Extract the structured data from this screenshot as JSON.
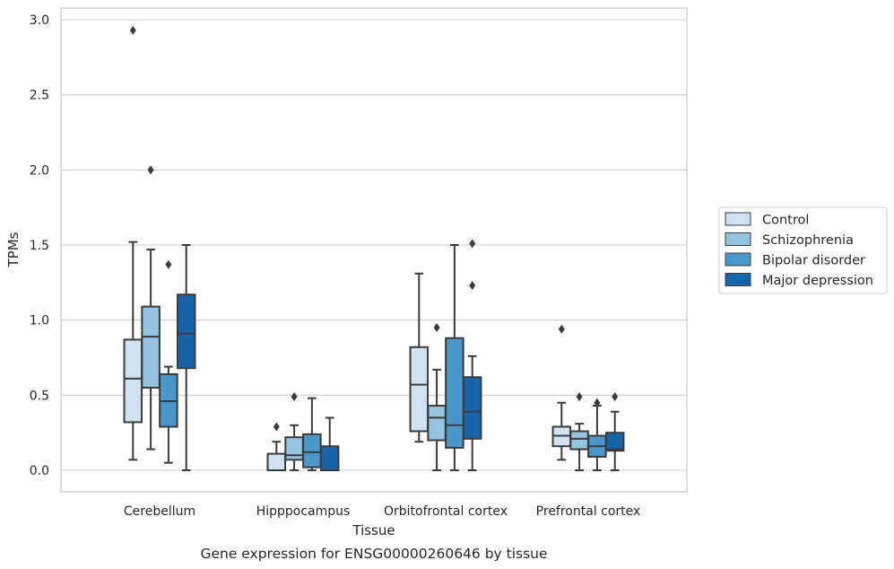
{
  "caption": "Gene expression for ENSG00000260646 by tissue",
  "chart_data": {
    "type": "boxplot",
    "xlabel": "Tissue",
    "ylabel": "TPMs",
    "ylim": [
      -0.14,
      3.07
    ],
    "yticks": [
      0.0,
      0.5,
      1.0,
      1.5,
      2.0,
      2.5,
      3.0
    ],
    "ytick_labels": [
      "0.0",
      "0.5",
      "1.0",
      "1.5",
      "2.0",
      "2.5",
      "3.0"
    ],
    "grid": "horizontal",
    "legend_position": "right",
    "categories": [
      "Cerebellum",
      "Hipppocampus",
      "Orbitofrontal cortex",
      "Prefrontal cortex"
    ],
    "series": [
      {
        "name": "Control",
        "color": "#d0e1f2",
        "boxes": [
          {
            "whislo": 0.07,
            "q1": 0.32,
            "med": 0.61,
            "q3": 0.87,
            "whishi": 1.52,
            "fliers": [
              2.93
            ]
          },
          {
            "whislo": 0.0,
            "q1": 0.0,
            "med": 0.0,
            "q3": 0.11,
            "whishi": 0.19,
            "fliers": [
              0.29
            ]
          },
          {
            "whislo": 0.19,
            "q1": 0.26,
            "med": 0.57,
            "q3": 0.82,
            "whishi": 1.31,
            "fliers": []
          },
          {
            "whislo": 0.07,
            "q1": 0.16,
            "med": 0.23,
            "q3": 0.29,
            "whishi": 0.45,
            "fliers": [
              0.94
            ]
          }
        ]
      },
      {
        "name": "Schizophrenia",
        "color": "#94c4df",
        "boxes": [
          {
            "whislo": 0.14,
            "q1": 0.55,
            "med": 0.89,
            "q3": 1.09,
            "whishi": 1.47,
            "fliers": [
              2.0
            ]
          },
          {
            "whislo": 0.0,
            "q1": 0.07,
            "med": 0.1,
            "q3": 0.22,
            "whishi": 0.3,
            "fliers": [
              0.49
            ]
          },
          {
            "whislo": 0.0,
            "q1": 0.2,
            "med": 0.35,
            "q3": 0.43,
            "whishi": 0.67,
            "fliers": [
              0.95
            ]
          },
          {
            "whislo": 0.0,
            "q1": 0.14,
            "med": 0.21,
            "q3": 0.26,
            "whishi": 0.31,
            "fliers": [
              0.49
            ]
          }
        ]
      },
      {
        "name": "Bipolar disorder",
        "color": "#4a98c9",
        "boxes": [
          {
            "whislo": 0.05,
            "q1": 0.29,
            "med": 0.46,
            "q3": 0.64,
            "whishi": 0.69,
            "fliers": [
              1.37
            ]
          },
          {
            "whislo": 0.0,
            "q1": 0.02,
            "med": 0.12,
            "q3": 0.24,
            "whishi": 0.48,
            "fliers": []
          },
          {
            "whislo": 0.0,
            "q1": 0.15,
            "med": 0.3,
            "q3": 0.88,
            "whishi": 1.5,
            "fliers": []
          },
          {
            "whislo": 0.0,
            "q1": 0.09,
            "med": 0.16,
            "q3": 0.23,
            "whishi": 0.43,
            "fliers": [
              0.45
            ]
          }
        ]
      },
      {
        "name": "Major depression",
        "color": "#1764ab",
        "boxes": [
          {
            "whislo": 0.0,
            "q1": 0.68,
            "med": 0.91,
            "q3": 1.17,
            "whishi": 1.5,
            "fliers": []
          },
          {
            "whislo": 0.0,
            "q1": 0.0,
            "med": 0.0,
            "q3": 0.16,
            "whishi": 0.35,
            "fliers": []
          },
          {
            "whislo": 0.0,
            "q1": 0.21,
            "med": 0.39,
            "q3": 0.62,
            "whishi": 0.76,
            "fliers": [
              1.23,
              1.51
            ]
          },
          {
            "whislo": 0.0,
            "q1": 0.13,
            "med": 0.14,
            "q3": 0.25,
            "whishi": 0.39,
            "fliers": [
              0.49
            ]
          }
        ]
      }
    ]
  }
}
